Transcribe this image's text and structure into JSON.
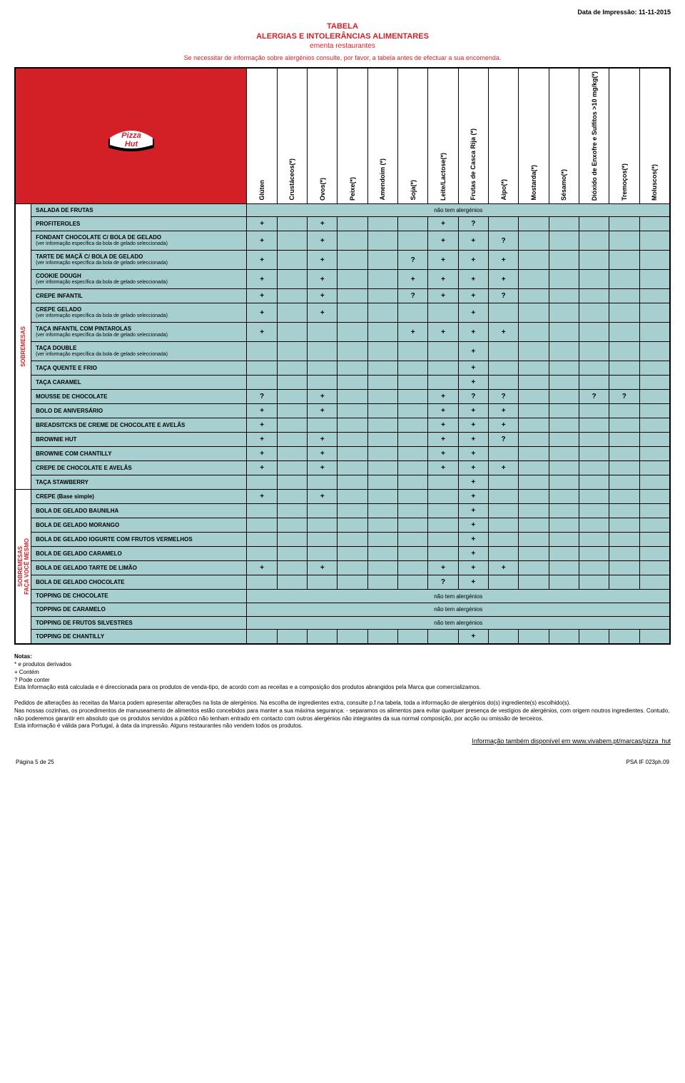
{
  "print_date": "Data de Impressão: 11-11-2015",
  "title_line1": "TABELA",
  "title_line2": "ALERGIAS E INTOLERÂNCIAS ALIMENTARES",
  "title_line3": "ementa restaurantes",
  "header_note": "Se necessitar de informação sobre alergénios consulte, por favor, a tabela antes de efectuar a sua encomenda.",
  "allergen_columns": [
    "Glúten",
    "Crustáceos(*)",
    "Ovos(*)",
    "Peixe(*)",
    "Amendoim (*)",
    "Soja(*)",
    "Leite/Lactose(*)",
    "Frutas de Casca Rija (*)",
    "Aipo(*)",
    "Mostarda(*)",
    "Sésamo(*)",
    "Dióxido de Enxofre e Sulfitos >10 mg/kg(*)",
    "Tremoços(*)",
    "Moluscos(*)"
  ],
  "no_allergen_text": "não tem alergénios",
  "categories": [
    {
      "label": "SOBREMESAS",
      "rows": [
        {
          "name": "SALADA DE FRUTAS",
          "span": "não tem alergénios"
        },
        {
          "name": "PROFITEROLES",
          "cells": [
            "+",
            "",
            "+",
            "",
            "",
            "",
            "+",
            "?",
            "",
            "",
            "",
            "",
            "",
            ""
          ]
        },
        {
          "name": "FONDANT CHOCOLATE C/ BOLA DE GELADO",
          "sub": "(ver informação específica da bola de gelado seleccionada)",
          "cells": [
            "+",
            "",
            "+",
            "",
            "",
            "",
            "+",
            "+",
            "?",
            "",
            "",
            "",
            "",
            ""
          ]
        },
        {
          "name": "TARTE DE MAÇÃ C/ BOLA DE GELADO",
          "sub": "(ver informação específica da bola de gelado seleccionada)",
          "cells": [
            "+",
            "",
            "+",
            "",
            "",
            "?",
            "+",
            "+",
            "+",
            "",
            "",
            "",
            "",
            ""
          ]
        },
        {
          "name": "COOKIE DOUGH",
          "sub": "(ver informação específica da bola de gelado seleccionada)",
          "cells": [
            "+",
            "",
            "+",
            "",
            "",
            "+",
            "+",
            "+",
            "+",
            "",
            "",
            "",
            "",
            ""
          ]
        },
        {
          "name": "CREPE INFANTIL",
          "cells": [
            "+",
            "",
            "+",
            "",
            "",
            "?",
            "+",
            "+",
            "?",
            "",
            "",
            "",
            "",
            ""
          ]
        },
        {
          "name": "CREPE GELADO",
          "sub": "(ver informação específica da bola de gelado seleccionada)",
          "cells": [
            "+",
            "",
            "+",
            "",
            "",
            "",
            "",
            "+",
            "",
            "",
            "",
            "",
            "",
            ""
          ]
        },
        {
          "name": "TAÇA INFANTIL COM PINTAROLAS",
          "sub": "(ver informação específica da bola de gelado seleccionada)",
          "cells": [
            "+",
            "",
            "",
            "",
            "",
            "+",
            "+",
            "+",
            "+",
            "",
            "",
            "",
            "",
            ""
          ]
        },
        {
          "name": "TAÇA DOUBLE",
          "sub": "(ver informação específica da bola de gelado seleccionada)",
          "cells": [
            "",
            "",
            "",
            "",
            "",
            "",
            "",
            "+",
            "",
            "",
            "",
            "",
            "",
            ""
          ]
        },
        {
          "name": "TAÇA QUENTE E FRIO",
          "cells": [
            "",
            "",
            "",
            "",
            "",
            "",
            "",
            "+",
            "",
            "",
            "",
            "",
            "",
            ""
          ]
        },
        {
          "name": "TAÇA CARAMEL",
          "cells": [
            "",
            "",
            "",
            "",
            "",
            "",
            "",
            "+",
            "",
            "",
            "",
            "",
            "",
            ""
          ]
        },
        {
          "name": "MOUSSE DE CHOCOLATE",
          "cells": [
            "?",
            "",
            "+",
            "",
            "",
            "",
            "+",
            "?",
            "?",
            "",
            "",
            "?",
            "?",
            ""
          ]
        },
        {
          "name": "BOLO DE ANIVERSÁRIO",
          "cells": [
            "+",
            "",
            "+",
            "",
            "",
            "",
            "+",
            "+",
            "+",
            "",
            "",
            "",
            "",
            ""
          ]
        },
        {
          "name": "BREADSITCKS DE CREME DE CHOCOLATE E AVELÃS",
          "cells": [
            "+",
            "",
            "",
            "",
            "",
            "",
            "+",
            "+",
            "+",
            "",
            "",
            "",
            "",
            ""
          ]
        },
        {
          "name": "BROWNIE HUT",
          "cells": [
            "+",
            "",
            "+",
            "",
            "",
            "",
            "+",
            "+",
            "?",
            "",
            "",
            "",
            "",
            ""
          ]
        },
        {
          "name": "BROWNIE COM CHANTILLY",
          "cells": [
            "+",
            "",
            "+",
            "",
            "",
            "",
            "+",
            "+",
            "",
            "",
            "",
            "",
            "",
            ""
          ]
        },
        {
          "name": "CREPE DE CHOCOLATE E AVELÃS",
          "cells": [
            "+",
            "",
            "+",
            "",
            "",
            "",
            "+",
            "+",
            "+",
            "",
            "",
            "",
            "",
            ""
          ]
        },
        {
          "name": "TAÇA STAWBERRY",
          "cells": [
            "",
            "",
            "",
            "",
            "",
            "",
            "",
            "+",
            "",
            "",
            "",
            "",
            "",
            ""
          ]
        }
      ]
    },
    {
      "label": "SOBREMESAS\nFAÇA VOCÊ MESMO",
      "rows": [
        {
          "name": "CREPE (Base simple)",
          "cells": [
            "+",
            "",
            "+",
            "",
            "",
            "",
            "",
            "+",
            "",
            "",
            "",
            "",
            "",
            ""
          ]
        },
        {
          "name": "BOLA DE GELADO BAUNILHA",
          "cells": [
            "",
            "",
            "",
            "",
            "",
            "",
            "",
            "+",
            "",
            "",
            "",
            "",
            "",
            ""
          ]
        },
        {
          "name": "BOLA DE GELADO MORANGO",
          "cells": [
            "",
            "",
            "",
            "",
            "",
            "",
            "",
            "+",
            "",
            "",
            "",
            "",
            "",
            ""
          ]
        },
        {
          "name": "BOLA DE GELADO IOGURTE COM FRUTOS VERMELHOS",
          "cells": [
            "",
            "",
            "",
            "",
            "",
            "",
            "",
            "+",
            "",
            "",
            "",
            "",
            "",
            ""
          ]
        },
        {
          "name": "BOLA DE GELADO CARAMELO",
          "cells": [
            "",
            "",
            "",
            "",
            "",
            "",
            "",
            "+",
            "",
            "",
            "",
            "",
            "",
            ""
          ]
        },
        {
          "name": "BOLA DE GELADO TARTE DE LIMÃO",
          "cells": [
            "+",
            "",
            "+",
            "",
            "",
            "",
            "+",
            "+",
            "+",
            "",
            "",
            "",
            "",
            ""
          ]
        },
        {
          "name": "BOLA DE GELADO CHOCOLATE",
          "cells": [
            "",
            "",
            "",
            "",
            "",
            "",
            "?",
            "+",
            "",
            "",
            "",
            "",
            "",
            ""
          ]
        },
        {
          "name": "TOPPING DE CHOCOLATE",
          "span": "não tem alergénios"
        },
        {
          "name": "TOPPING DE CARAMELO",
          "span": "não tem alergénios"
        },
        {
          "name": "TOPPING DE FRUTOS SILVESTRES",
          "span": "não tem alergénios"
        },
        {
          "name": "TOPPING DE CHANTILLY",
          "cells": [
            "",
            "",
            "",
            "",
            "",
            "",
            "",
            "+",
            "",
            "",
            "",
            "",
            "",
            ""
          ]
        }
      ]
    }
  ],
  "notes": {
    "title": "Notas:",
    "lines": [
      "* e produtos derivados",
      "+ Contém",
      "? Pode conter",
      "Esta Informação está calculada e é direccionada para os produtos de venda-tipo, de acordo com as receitas e a composição dos produtos abrangidos pela Marca que comercializamos.",
      "",
      "Pedidos de alterações às receitas da Marca podem apresentar alterações na lista de alergénios. Na escolha de ingredientes extra, consulte p.f na tabela,  toda a informação de alergénios do(s) ingrediente(s) escolhido(s).",
      "Nas nossas cozinhas, os procedimentos de manuseamento de alimentos estão concebidos para manter a sua máxima segurança: - separamos os alimentos para evitar qualquer presença de vestígios de alergénios, com origem noutros ingredientes. Contudo, não poderemos garantir em absoluto que os produtos servidos a público não tenham entrado em contacto com outros alergénios não integrantes da sua normal composição, por acção ou omissão de terceiros.",
      "Esta informação é válida para Portugal, à data da impressão. Alguns restaurantes não vendem todos os produtos."
    ]
  },
  "info_link": "Informação também disponível em www.vivabem.pt/marcas/pizza_hut",
  "footer_left": "Página 5 de 25",
  "footer_right": "PSA  IF 023ph.09"
}
